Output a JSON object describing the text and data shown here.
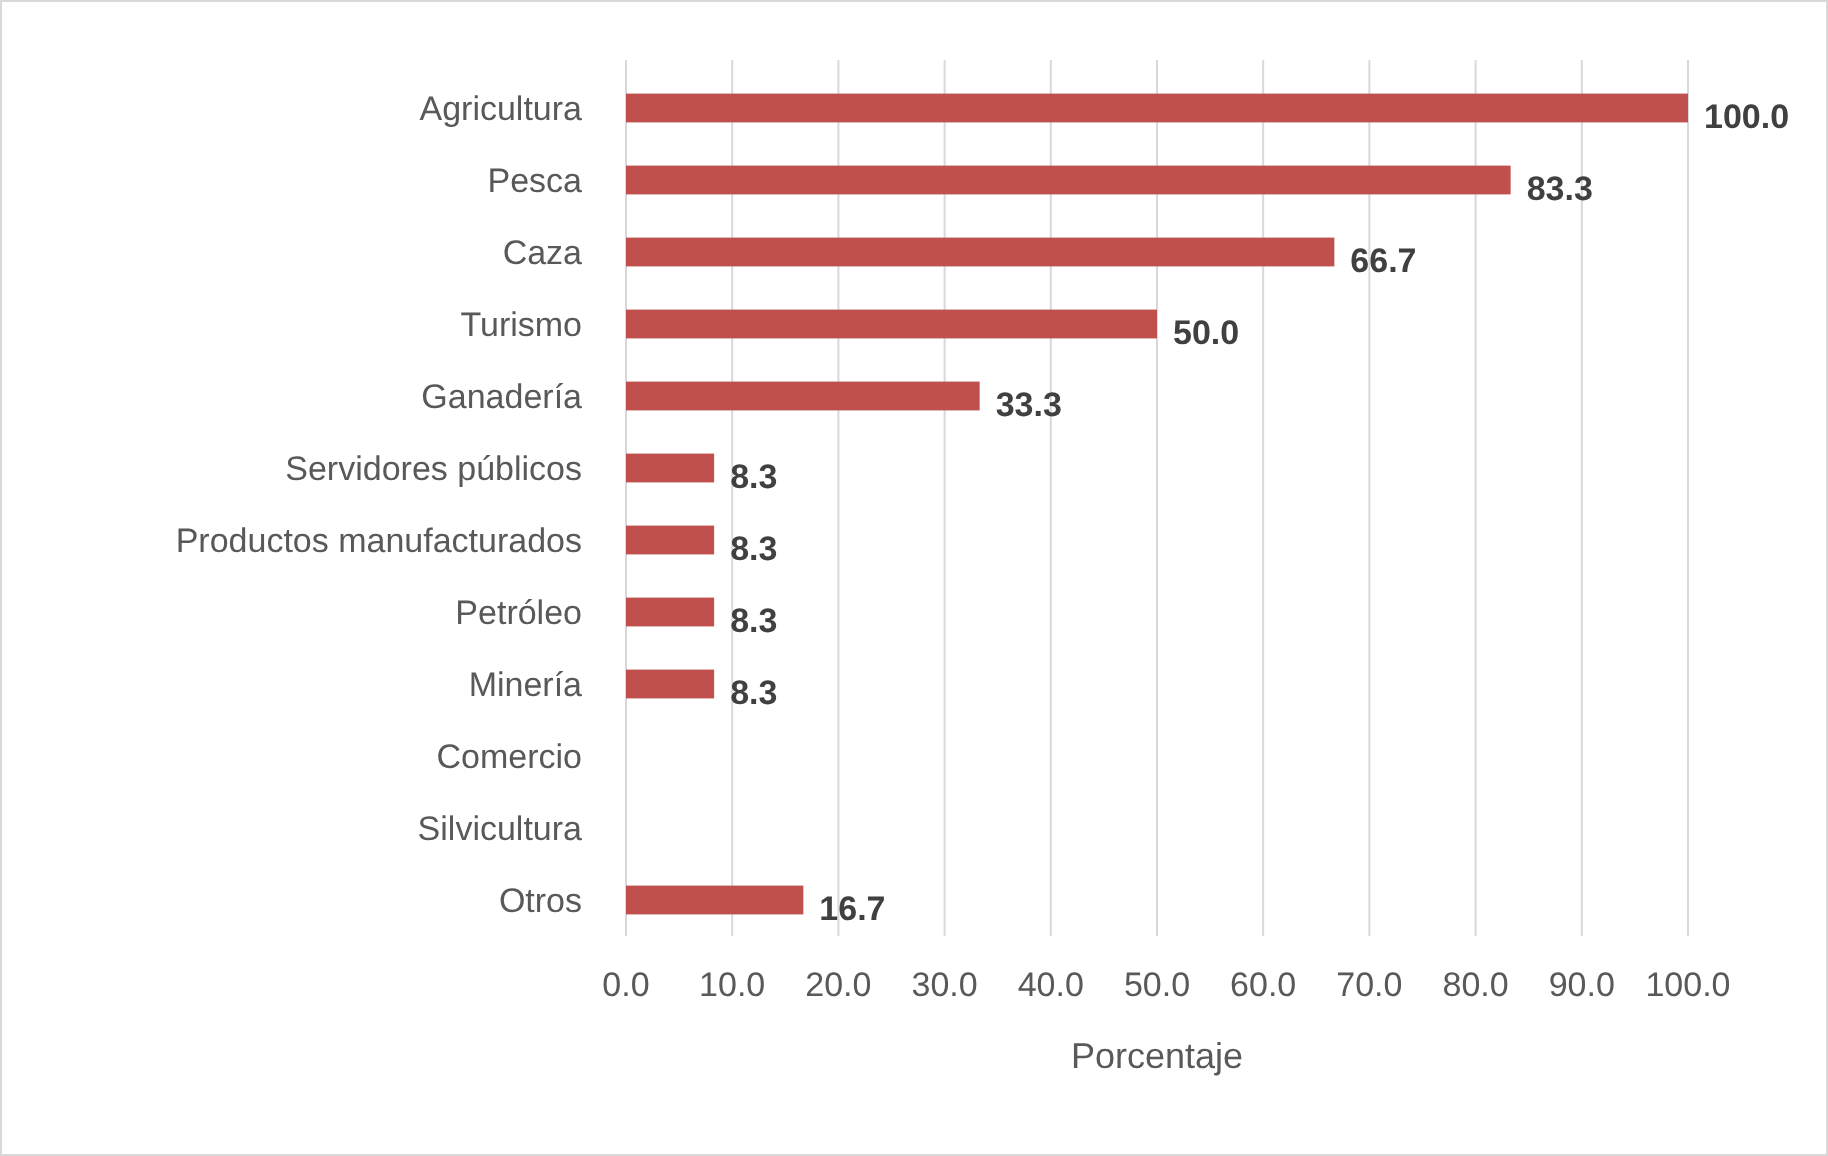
{
  "chart_data": {
    "type": "bar",
    "orientation": "horizontal",
    "xlabel": "Porcentaje",
    "categories": [
      "Agricultura",
      "Pesca",
      "Caza",
      "Turismo",
      "Ganadería",
      "Servidores públicos",
      "Productos manufacturados",
      "Petróleo",
      "Minería",
      "Comercio",
      "Silvicultura",
      "Otros"
    ],
    "values": [
      100.0,
      83.3,
      66.7,
      50.0,
      33.3,
      8.3,
      8.3,
      8.3,
      8.3,
      0,
      0,
      16.7
    ],
    "value_labels": [
      "100.0",
      "83.3",
      "66.7",
      "50.0",
      "33.3",
      "8.3",
      "8.3",
      "8.3",
      "8.3",
      null,
      null,
      "16.7"
    ],
    "color": "#c0504d",
    "xlim": [
      0,
      100
    ],
    "xticks": [
      {
        "value": 0,
        "label": "0.0"
      },
      {
        "value": 10,
        "label": "10.0"
      },
      {
        "value": 20,
        "label": "20.0"
      },
      {
        "value": 30,
        "label": "30.0"
      },
      {
        "value": 40,
        "label": "40.0"
      },
      {
        "value": 50,
        "label": "50.0"
      },
      {
        "value": 60,
        "label": "60.0"
      },
      {
        "value": 70,
        "label": "70.0"
      },
      {
        "value": 80,
        "label": "80.0"
      },
      {
        "value": 90,
        "label": "90.0"
      },
      {
        "value": 100,
        "label": "100.0"
      }
    ],
    "grid": "x"
  }
}
